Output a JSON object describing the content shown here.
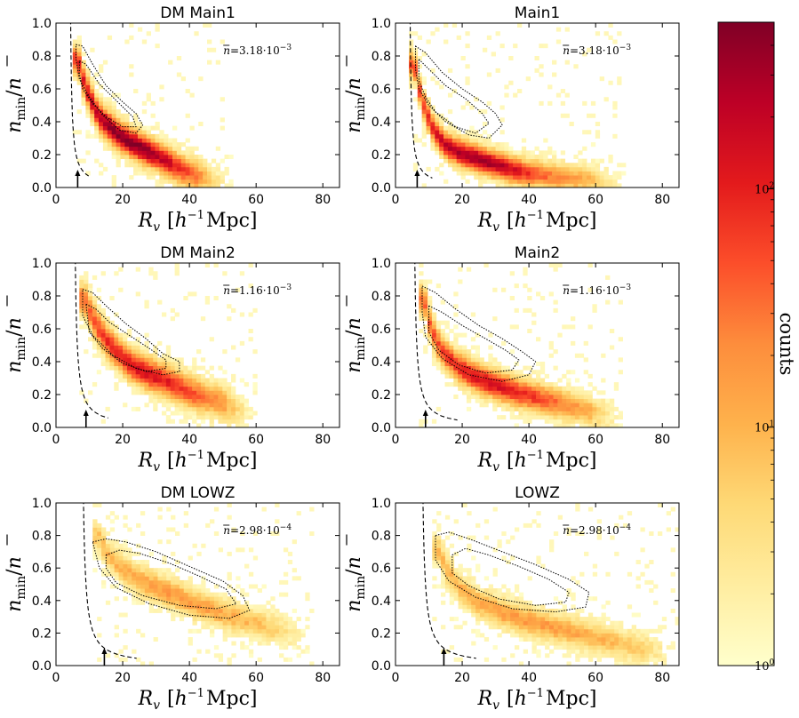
{
  "chart_data": [
    {
      "type": "heatmap",
      "title": "DM Main1",
      "xlabel_symbol": "R",
      "xlabel_sub": "v",
      "xlabel_units_pre": "[h",
      "xlabel_units_exp": "−1",
      "xlabel_units_post": "Mpc]",
      "ylabel_symbol": "n",
      "ylabel_sub": "min",
      "ylabel_denom": "n",
      "xlim": [
        0,
        85
      ],
      "ylim": [
        0.0,
        1.0
      ],
      "xticks": [
        "0",
        "20",
        "40",
        "60",
        "80"
      ],
      "yticks": [
        "0.0",
        "0.2",
        "0.4",
        "0.6",
        "0.8",
        "1.0"
      ],
      "annotation": "n̄ = 3.18·10⁻³",
      "annotation_parts": {
        "lhs": "n",
        "eq": "=3.18·10",
        "exp": "−3"
      },
      "arrow_x": 6.5,
      "dashed_curve": {
        "x0": 4.0,
        "k": 1.35,
        "x_end": 11
      },
      "ridge": [
        [
          6,
          0.78
        ],
        [
          8,
          0.62
        ],
        [
          12,
          0.44
        ],
        [
          18,
          0.32
        ],
        [
          24,
          0.25
        ],
        [
          30,
          0.19
        ],
        [
          36,
          0.12
        ],
        [
          42,
          0.07
        ],
        [
          48,
          0.035
        ]
      ],
      "spread_y": 0.1,
      "peak_x": 22,
      "density_scale": 1.0,
      "contours": [
        [
          [
            6,
            0.87
          ],
          [
            8,
            0.86
          ],
          [
            11,
            0.75
          ],
          [
            15,
            0.62
          ],
          [
            20,
            0.52
          ],
          [
            24,
            0.45
          ],
          [
            26,
            0.38
          ],
          [
            24,
            0.33
          ],
          [
            19,
            0.35
          ],
          [
            14,
            0.44
          ],
          [
            10,
            0.55
          ],
          [
            7,
            0.66
          ],
          [
            6,
            0.78
          ],
          [
            6,
            0.87
          ]
        ],
        [
          [
            7,
            0.77
          ],
          [
            9,
            0.75
          ],
          [
            13,
            0.63
          ],
          [
            18,
            0.53
          ],
          [
            23,
            0.43
          ],
          [
            24,
            0.37
          ],
          [
            20,
            0.37
          ],
          [
            15,
            0.43
          ],
          [
            11,
            0.51
          ],
          [
            8,
            0.6
          ],
          [
            7,
            0.69
          ],
          [
            7,
            0.77
          ]
        ]
      ]
    },
    {
      "type": "heatmap",
      "title": "Main1",
      "xlabel_symbol": "R",
      "xlabel_sub": "v",
      "xlabel_units_pre": "[h",
      "xlabel_units_exp": "−1",
      "xlabel_units_post": "Mpc]",
      "ylabel_symbol": "n",
      "ylabel_sub": "min",
      "ylabel_denom": "n",
      "xlim": [
        0,
        85
      ],
      "ylim": [
        0.0,
        1.0
      ],
      "xticks": [
        "0",
        "20",
        "40",
        "60",
        "80"
      ],
      "yticks": [
        "0.0",
        "0.2",
        "0.4",
        "0.6",
        "0.8",
        "1.0"
      ],
      "annotation": "n̄ = 3.18·10⁻³",
      "annotation_parts": {
        "lhs": "n",
        "eq": "=3.18·10",
        "exp": "−3"
      },
      "arrow_x": 6.5,
      "dashed_curve": {
        "x0": 4.0,
        "k": 1.35,
        "x_end": 13
      },
      "ridge": [
        [
          5,
          0.75
        ],
        [
          7,
          0.55
        ],
        [
          10,
          0.38
        ],
        [
          14,
          0.26
        ],
        [
          20,
          0.2
        ],
        [
          28,
          0.15
        ],
        [
          36,
          0.1
        ],
        [
          46,
          0.07
        ],
        [
          56,
          0.045
        ],
        [
          64,
          0.03
        ]
      ],
      "spread_y": 0.09,
      "peak_x": 24,
      "density_scale": 0.95,
      "contours": [
        [
          [
            6,
            0.86
          ],
          [
            9,
            0.82
          ],
          [
            14,
            0.7
          ],
          [
            20,
            0.6
          ],
          [
            26,
            0.52
          ],
          [
            30,
            0.45
          ],
          [
            32,
            0.38
          ],
          [
            28,
            0.3
          ],
          [
            22,
            0.32
          ],
          [
            15,
            0.4
          ],
          [
            10,
            0.5
          ],
          [
            7,
            0.6
          ],
          [
            6,
            0.72
          ],
          [
            6,
            0.86
          ]
        ],
        [
          [
            7,
            0.78
          ],
          [
            10,
            0.72
          ],
          [
            15,
            0.62
          ],
          [
            21,
            0.54
          ],
          [
            26,
            0.45
          ],
          [
            28,
            0.39
          ],
          [
            24,
            0.33
          ],
          [
            18,
            0.37
          ],
          [
            12,
            0.46
          ],
          [
            9,
            0.55
          ],
          [
            7,
            0.65
          ],
          [
            7,
            0.78
          ]
        ]
      ]
    },
    {
      "type": "heatmap",
      "title": "DM Main2",
      "xlabel_symbol": "R",
      "xlabel_sub": "v",
      "xlabel_units_pre": "[h",
      "xlabel_units_exp": "−1",
      "xlabel_units_post": "Mpc]",
      "ylabel_symbol": "n",
      "ylabel_sub": "min",
      "ylabel_denom": "n",
      "xlim": [
        0,
        85
      ],
      "ylim": [
        0.0,
        1.0
      ],
      "xticks": [
        "0",
        "20",
        "40",
        "60",
        "80"
      ],
      "yticks": [
        "0.0",
        "0.2",
        "0.4",
        "0.6",
        "0.8",
        "1.0"
      ],
      "annotation": "n̄ = 1.16·10⁻³",
      "annotation_parts": {
        "lhs": "n",
        "eq": "=1.16·10",
        "exp": "−3"
      },
      "arrow_x": 9.0,
      "dashed_curve": {
        "x0": 5.2,
        "k": 2.0,
        "x_end": 17
      },
      "ridge": [
        [
          8,
          0.78
        ],
        [
          10,
          0.68
        ],
        [
          13,
          0.57
        ],
        [
          17,
          0.47
        ],
        [
          22,
          0.38
        ],
        [
          28,
          0.32
        ],
        [
          34,
          0.27
        ],
        [
          40,
          0.21
        ],
        [
          48,
          0.16
        ],
        [
          56,
          0.1
        ]
      ],
      "spread_y": 0.11,
      "peak_x": 26,
      "density_scale": 0.8,
      "contours": [
        [
          [
            8,
            0.84
          ],
          [
            11,
            0.82
          ],
          [
            15,
            0.74
          ],
          [
            21,
            0.63
          ],
          [
            27,
            0.54
          ],
          [
            32,
            0.45
          ],
          [
            37,
            0.4
          ],
          [
            37,
            0.34
          ],
          [
            32,
            0.32
          ],
          [
            24,
            0.36
          ],
          [
            17,
            0.44
          ],
          [
            11,
            0.56
          ],
          [
            8,
            0.68
          ],
          [
            8,
            0.84
          ]
        ],
        [
          [
            9,
            0.75
          ],
          [
            12,
            0.72
          ],
          [
            16,
            0.64
          ],
          [
            22,
            0.56
          ],
          [
            28,
            0.48
          ],
          [
            33,
            0.41
          ],
          [
            33,
            0.36
          ],
          [
            27,
            0.34
          ],
          [
            20,
            0.39
          ],
          [
            14,
            0.48
          ],
          [
            10,
            0.58
          ],
          [
            9,
            0.75
          ]
        ]
      ]
    },
    {
      "type": "heatmap",
      "title": "Main2",
      "xlabel_symbol": "R",
      "xlabel_sub": "v",
      "xlabel_units_pre": "[h",
      "xlabel_units_exp": "−1",
      "xlabel_units_post": "Mpc]",
      "ylabel_symbol": "n",
      "ylabel_sub": "min",
      "ylabel_denom": "n",
      "xlim": [
        0,
        85
      ],
      "ylim": [
        0.0,
        1.0
      ],
      "xticks": [
        "0",
        "20",
        "40",
        "60",
        "80"
      ],
      "yticks": [
        "0.0",
        "0.2",
        "0.4",
        "0.6",
        "0.8",
        "1.0"
      ],
      "annotation": "n̄ = 1.16·10⁻³",
      "annotation_parts": {
        "lhs": "n",
        "eq": "=1.16·10",
        "exp": "−3"
      },
      "arrow_x": 9.0,
      "dashed_curve": {
        "x0": 5.2,
        "k": 2.0,
        "x_end": 19
      },
      "ridge": [
        [
          8,
          0.78
        ],
        [
          10,
          0.6
        ],
        [
          13,
          0.47
        ],
        [
          18,
          0.37
        ],
        [
          24,
          0.3
        ],
        [
          32,
          0.24
        ],
        [
          40,
          0.19
        ],
        [
          48,
          0.15
        ],
        [
          56,
          0.11
        ],
        [
          64,
          0.07
        ]
      ],
      "spread_y": 0.1,
      "peak_x": 28,
      "density_scale": 0.8,
      "contours": [
        [
          [
            8,
            0.86
          ],
          [
            12,
            0.82
          ],
          [
            18,
            0.72
          ],
          [
            25,
            0.62
          ],
          [
            32,
            0.54
          ],
          [
            38,
            0.46
          ],
          [
            42,
            0.4
          ],
          [
            40,
            0.32
          ],
          [
            32,
            0.28
          ],
          [
            22,
            0.32
          ],
          [
            14,
            0.42
          ],
          [
            9,
            0.55
          ],
          [
            8,
            0.7
          ],
          [
            8,
            0.86
          ]
        ],
        [
          [
            10,
            0.74
          ],
          [
            14,
            0.7
          ],
          [
            20,
            0.62
          ],
          [
            27,
            0.54
          ],
          [
            33,
            0.47
          ],
          [
            37,
            0.41
          ],
          [
            35,
            0.35
          ],
          [
            27,
            0.33
          ],
          [
            19,
            0.38
          ],
          [
            13,
            0.47
          ],
          [
            10,
            0.58
          ],
          [
            10,
            0.74
          ]
        ]
      ]
    },
    {
      "type": "heatmap",
      "title": "DM LOWZ",
      "xlabel_symbol": "R",
      "xlabel_sub": "v",
      "xlabel_units_pre": "[h",
      "xlabel_units_exp": "−1",
      "xlabel_units_post": "Mpc]",
      "ylabel_symbol": "n",
      "ylabel_sub": "min",
      "ylabel_denom": "n",
      "xlim": [
        0,
        85
      ],
      "ylim": [
        0.0,
        1.0
      ],
      "xticks": [
        "0",
        "20",
        "40",
        "60",
        "80"
      ],
      "yticks": [
        "0.0",
        "0.2",
        "0.4",
        "0.6",
        "0.8",
        "1.0"
      ],
      "annotation": "n̄ = 2.98·10⁻⁴",
      "annotation_parts": {
        "lhs": "n",
        "eq": "=2.98·10",
        "exp": "−4"
      },
      "arrow_x": 14.5,
      "dashed_curve": {
        "x0": 7.5,
        "k": 2.5,
        "x_end": 27
      },
      "ridge": [
        [
          12,
          0.8
        ],
        [
          15,
          0.68
        ],
        [
          19,
          0.6
        ],
        [
          25,
          0.52
        ],
        [
          32,
          0.46
        ],
        [
          40,
          0.39
        ],
        [
          48,
          0.33
        ],
        [
          56,
          0.28
        ],
        [
          64,
          0.23
        ],
        [
          72,
          0.19
        ]
      ],
      "spread_y": 0.1,
      "peak_x": 36,
      "density_scale": 0.45,
      "contours": [
        [
          [
            11,
            0.76
          ],
          [
            15,
            0.78
          ],
          [
            21,
            0.76
          ],
          [
            30,
            0.7
          ],
          [
            40,
            0.61
          ],
          [
            50,
            0.52
          ],
          [
            56,
            0.43
          ],
          [
            58,
            0.34
          ],
          [
            52,
            0.29
          ],
          [
            40,
            0.31
          ],
          [
            28,
            0.38
          ],
          [
            18,
            0.48
          ],
          [
            13,
            0.6
          ],
          [
            11,
            0.76
          ]
        ],
        [
          [
            15,
            0.68
          ],
          [
            19,
            0.71
          ],
          [
            25,
            0.69
          ],
          [
            34,
            0.63
          ],
          [
            43,
            0.55
          ],
          [
            51,
            0.47
          ],
          [
            54,
            0.38
          ],
          [
            48,
            0.35
          ],
          [
            37,
            0.37
          ],
          [
            26,
            0.43
          ],
          [
            18,
            0.51
          ],
          [
            15,
            0.6
          ],
          [
            15,
            0.68
          ]
        ]
      ]
    },
    {
      "type": "heatmap",
      "title": "LOWZ",
      "xlabel_symbol": "R",
      "xlabel_sub": "v",
      "xlabel_units_pre": "[h",
      "xlabel_units_exp": "−1",
      "xlabel_units_post": "Mpc]",
      "ylabel_symbol": "n",
      "ylabel_sub": "min",
      "ylabel_denom": "n",
      "xlim": [
        0,
        85
      ],
      "ylim": [
        0.0,
        1.0
      ],
      "xticks": [
        "0",
        "20",
        "40",
        "60",
        "80"
      ],
      "yticks": [
        "0.0",
        "0.2",
        "0.4",
        "0.6",
        "0.8",
        "1.0"
      ],
      "annotation": "n̄ = 2.98·10⁻⁴",
      "annotation_parts": {
        "lhs": "n",
        "eq": "=2.98·10",
        "exp": "−4"
      },
      "arrow_x": 14.5,
      "dashed_curve": {
        "x0": 7.5,
        "k": 2.5,
        "x_end": 29
      },
      "ridge": [
        [
          12,
          0.72
        ],
        [
          15,
          0.58
        ],
        [
          19,
          0.47
        ],
        [
          25,
          0.38
        ],
        [
          32,
          0.32
        ],
        [
          40,
          0.27
        ],
        [
          50,
          0.22
        ],
        [
          60,
          0.17
        ],
        [
          70,
          0.12
        ],
        [
          80,
          0.08
        ]
      ],
      "spread_y": 0.1,
      "peak_x": 40,
      "density_scale": 0.45,
      "contours": [
        [
          [
            12,
            0.8
          ],
          [
            16,
            0.82
          ],
          [
            22,
            0.78
          ],
          [
            32,
            0.7
          ],
          [
            42,
            0.62
          ],
          [
            52,
            0.53
          ],
          [
            58,
            0.45
          ],
          [
            57,
            0.36
          ],
          [
            48,
            0.33
          ],
          [
            35,
            0.35
          ],
          [
            24,
            0.42
          ],
          [
            16,
            0.52
          ],
          [
            12,
            0.65
          ],
          [
            12,
            0.8
          ]
        ],
        [
          [
            17,
            0.68
          ],
          [
            21,
            0.72
          ],
          [
            28,
            0.68
          ],
          [
            37,
            0.61
          ],
          [
            46,
            0.53
          ],
          [
            52,
            0.45
          ],
          [
            51,
            0.39
          ],
          [
            42,
            0.37
          ],
          [
            31,
            0.41
          ],
          [
            22,
            0.49
          ],
          [
            17,
            0.57
          ],
          [
            17,
            0.68
          ]
        ]
      ]
    }
  ],
  "colorbar": {
    "label": "counts",
    "scale": "log",
    "colormap": "YlOrRd",
    "range": [
      1,
      500
    ],
    "ticks": [
      {
        "value": 1,
        "base": "10",
        "exp": "0"
      },
      {
        "value": 10,
        "base": "10",
        "exp": "1"
      },
      {
        "value": 100,
        "base": "10",
        "exp": "2"
      }
    ]
  },
  "colors": {
    "low": "#ffffcc",
    "mid": "#fd8d3c",
    "high": "#800026",
    "contour": "#000000",
    "dashed": "#000000"
  }
}
